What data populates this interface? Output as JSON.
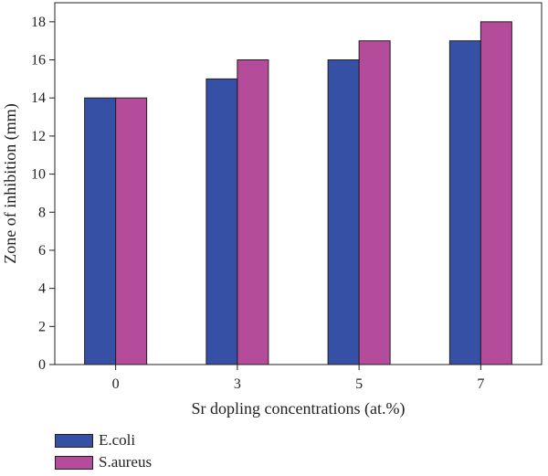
{
  "chart_data": {
    "type": "bar",
    "title": "",
    "xlabel": "Sr dopling concentrations (at.%)",
    "ylabel": "Zone of inhibition (mm)",
    "categories": [
      "0",
      "3",
      "5",
      "7"
    ],
    "series": [
      {
        "name": "E.coli",
        "values": [
          14,
          15,
          16,
          17
        ],
        "color": "#3550a5"
      },
      {
        "name": "S.aureus",
        "values": [
          14,
          16,
          17,
          18
        ],
        "color": "#b54b9b"
      }
    ],
    "ylim": [
      0,
      19
    ],
    "yticks": [
      0,
      2,
      4,
      6,
      8,
      10,
      12,
      14,
      16,
      18
    ],
    "grid": false,
    "legend_position": "bottom-left"
  }
}
